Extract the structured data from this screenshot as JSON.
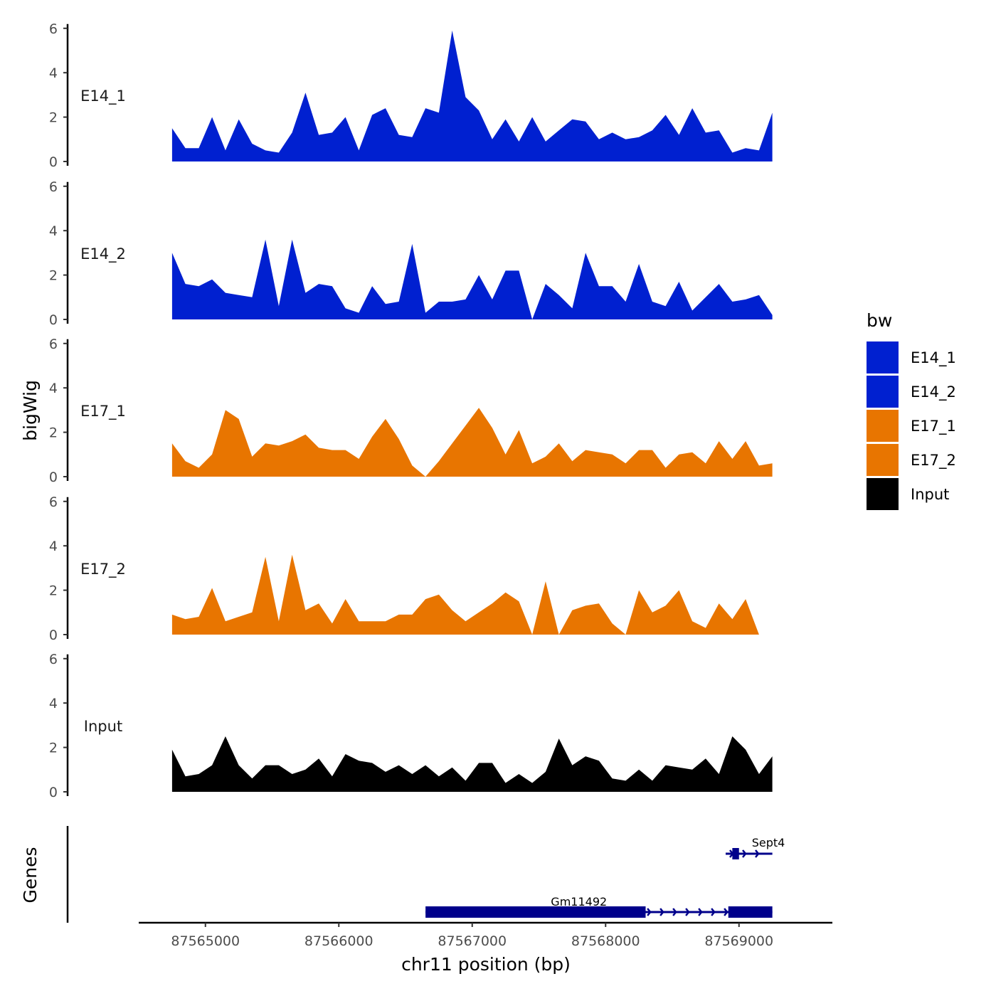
{
  "chart_data": {
    "type": "area",
    "chromosome": "chr11",
    "xlabel": "chr11 position (bp)",
    "ylabel": "bigWig",
    "genes_label": "Genes",
    "xlim": [
      87564500,
      87569700
    ],
    "ylim": [
      0,
      6
    ],
    "x_ticks": [
      87565000,
      87566000,
      87567000,
      87568000,
      87569000
    ],
    "x_tick_labels": [
      "87565000",
      "87566000",
      "87567000",
      "87568000",
      "87569000"
    ],
    "y_ticks": [
      0,
      2,
      4,
      6
    ],
    "y_tick_labels": [
      "0",
      "2",
      "4",
      "6"
    ],
    "legend": {
      "title": "bw",
      "entries": [
        {
          "label": "E14_1",
          "color": "#0020d0"
        },
        {
          "label": "E14_2",
          "color": "#0020d0"
        },
        {
          "label": "E17_1",
          "color": "#e87500"
        },
        {
          "label": "E17_2",
          "color": "#e87500"
        },
        {
          "label": "Input",
          "color": "#000000"
        }
      ]
    },
    "x": [
      87564750,
      87564850,
      87564950,
      87565050,
      87565150,
      87565250,
      87565350,
      87565450,
      87565550,
      87565650,
      87565750,
      87565850,
      87565950,
      87566050,
      87566150,
      87566250,
      87566350,
      87566450,
      87566550,
      87566650,
      87566750,
      87566850,
      87566950,
      87567050,
      87567150,
      87567250,
      87567350,
      87567450,
      87567550,
      87567650,
      87567750,
      87567850,
      87567950,
      87568050,
      87568150,
      87568250,
      87568350,
      87568450,
      87568550,
      87568650,
      87568750,
      87568850,
      87568950,
      87569050,
      87569150,
      87569250
    ],
    "series": [
      {
        "name": "E14_1",
        "color": "#0020d0",
        "values": [
          1.5,
          0.6,
          0.6,
          2.0,
          0.5,
          1.9,
          0.8,
          0.5,
          0.4,
          1.3,
          3.1,
          1.2,
          1.3,
          2.0,
          0.5,
          2.1,
          2.4,
          1.2,
          1.1,
          2.4,
          2.2,
          5.9,
          2.9,
          2.3,
          1.0,
          1.9,
          0.9,
          2.0,
          0.9,
          1.4,
          1.9,
          1.8,
          1.0,
          1.3,
          1.0,
          1.1,
          1.4,
          2.1,
          1.2,
          2.4,
          1.3,
          1.4,
          0.4,
          0.6,
          0.5,
          2.2
        ]
      },
      {
        "name": "E14_2",
        "color": "#0020d0",
        "values": [
          3.0,
          1.6,
          1.5,
          1.8,
          1.2,
          1.1,
          1.0,
          3.6,
          0.6,
          3.6,
          1.2,
          1.6,
          1.5,
          0.5,
          0.3,
          1.5,
          0.7,
          0.8,
          3.4,
          0.3,
          0.8,
          0.8,
          0.9,
          2.0,
          0.9,
          2.2,
          2.2,
          0.0,
          1.6,
          1.1,
          0.5,
          3.0,
          1.5,
          1.5,
          0.8,
          2.5,
          0.8,
          0.6,
          1.7,
          0.4,
          1.0,
          1.6,
          0.8,
          0.9,
          1.1,
          0.2
        ]
      },
      {
        "name": "E17_1",
        "color": "#e87500",
        "values": [
          1.5,
          0.7,
          0.4,
          1.0,
          3.0,
          2.6,
          0.9,
          1.5,
          1.4,
          1.6,
          1.9,
          1.3,
          1.2,
          1.2,
          0.8,
          1.8,
          2.6,
          1.7,
          0.5,
          0.0,
          0.7,
          1.5,
          2.3,
          3.1,
          2.2,
          1.0,
          2.1,
          0.6,
          0.9,
          1.5,
          0.7,
          1.2,
          1.1,
          1.0,
          0.6,
          1.2,
          1.2,
          0.4,
          1.0,
          1.1,
          0.6,
          1.6,
          0.8,
          1.6,
          0.5,
          0.6
        ]
      },
      {
        "name": "E17_2",
        "color": "#e87500",
        "values": [
          0.9,
          0.7,
          0.8,
          2.1,
          0.6,
          0.8,
          1.0,
          3.5,
          0.6,
          3.6,
          1.1,
          1.4,
          0.5,
          1.6,
          0.6,
          0.6,
          0.6,
          0.9,
          0.9,
          1.6,
          1.8,
          1.1,
          0.6,
          1.0,
          1.4,
          1.9,
          1.5,
          0.0,
          2.4,
          0.0,
          1.1,
          1.3,
          1.4,
          0.5,
          0.0,
          2.0,
          1.0,
          1.3,
          2.0,
          0.6,
          0.3,
          1.4,
          0.7,
          1.6,
          0.0,
          0.0
        ]
      },
      {
        "name": "Input",
        "color": "#000000",
        "values": [
          1.9,
          0.7,
          0.8,
          1.2,
          2.5,
          1.2,
          0.6,
          1.2,
          1.2,
          0.8,
          1.0,
          1.5,
          0.7,
          1.7,
          1.4,
          1.3,
          0.9,
          1.2,
          0.8,
          1.2,
          0.7,
          1.1,
          0.5,
          1.3,
          1.3,
          0.4,
          0.8,
          0.4,
          0.9,
          2.4,
          1.2,
          1.6,
          1.4,
          0.6,
          0.5,
          1.0,
          0.5,
          1.2,
          1.1,
          1.0,
          1.5,
          0.8,
          2.5,
          1.9,
          0.8,
          1.6
        ]
      }
    ],
    "genes": [
      {
        "name": "Sept4",
        "start": 87568900,
        "end": 87569250,
        "strand": "+",
        "color": "#00008b",
        "exons": [
          [
            87568950,
            87569000
          ]
        ]
      },
      {
        "name": "Gm11492",
        "start": 87566650,
        "end": 87569250,
        "strand": "+",
        "color": "#00008b",
        "exons": [
          [
            87566650,
            87568300
          ],
          [
            87568920,
            87569250
          ]
        ]
      }
    ]
  }
}
